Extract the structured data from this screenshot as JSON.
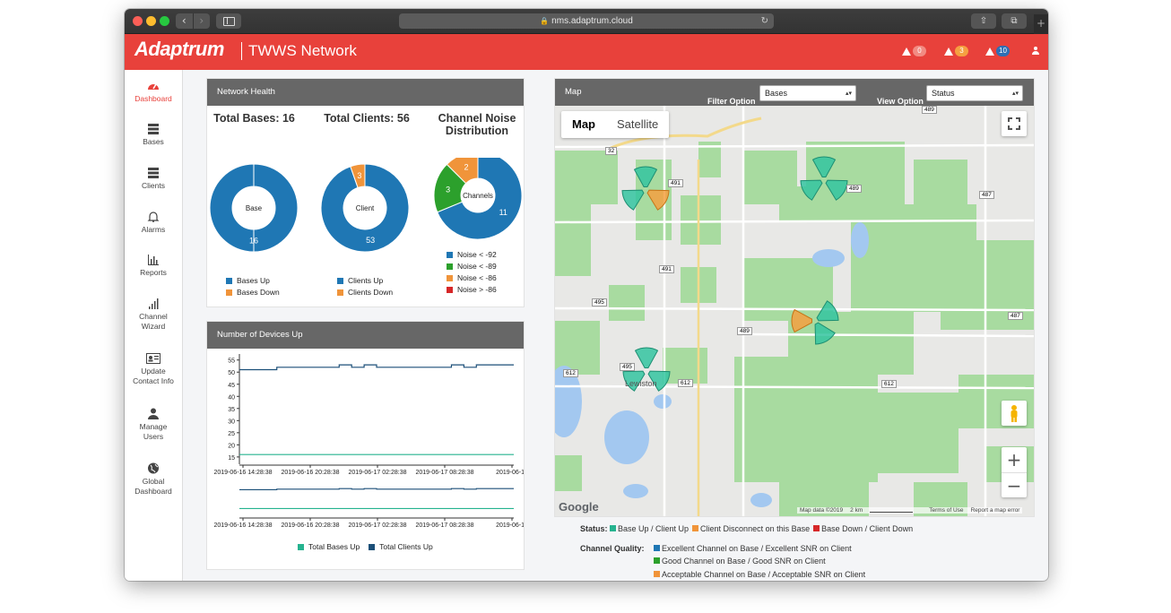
{
  "browser": {
    "url": "nms.adaptrum.cloud",
    "back_icon": "chevron-left",
    "forward_icon": "chevron-right",
    "share_icon": "share",
    "tabs_icon": "tabs",
    "new_tab": "+"
  },
  "app": {
    "logo": "Adaptrum",
    "title": "TWWS Network",
    "alerts": [
      {
        "count": "0",
        "color": "#f28b82"
      },
      {
        "count": "3",
        "color": "#f5a041"
      },
      {
        "count": "10",
        "color": "#2e6fb4"
      }
    ]
  },
  "nav": [
    {
      "label": "Dashboard",
      "icon": "dashboard-icon",
      "active": true
    },
    {
      "label": "Bases",
      "icon": "server-icon"
    },
    {
      "label": "Clients",
      "icon": "server-icon"
    },
    {
      "label": "Alarms",
      "icon": "bell-icon"
    },
    {
      "label": "Reports",
      "icon": "bar-chart-icon"
    },
    {
      "label_lines": [
        "Channel",
        "Wizard"
      ],
      "icon": "signal-icon"
    },
    {
      "label_lines": [
        "Update",
        "Contact Info"
      ],
      "icon": "contact-card-icon"
    },
    {
      "label_lines": [
        "Manage",
        "Users"
      ],
      "icon": "user-icon"
    },
    {
      "label_lines": [
        "Global",
        "Dashboard"
      ],
      "icon": "globe-icon"
    }
  ],
  "health": {
    "title": "Network Health",
    "total_bases": "Total Bases: 16",
    "total_clients": "Total Clients: 56",
    "noise_title_1": "Channel Noise",
    "noise_title_2": "Distribution",
    "donut_bases_center": "Base",
    "donut_clients_center": "Client",
    "donut_noise_center": "Channels",
    "legend_bases": [
      "Bases Up",
      "Bases Down"
    ],
    "legend_clients": [
      "Clients Up",
      "Clients Down"
    ],
    "legend_noise": [
      "Noise < -92",
      "Noise < -89",
      "Noise < -86",
      "Noise > -86"
    ]
  },
  "devices": {
    "title": "Number of Devices Up",
    "legend": [
      "Total Bases Up",
      "Total Clients Up"
    ]
  },
  "map": {
    "title": "Map",
    "filter_label": "Filter Option",
    "filter_value": "Bases",
    "view_label": "View Option",
    "view_value": "Status",
    "type_map": "Map",
    "type_satellite": "Satellite",
    "google": "Google",
    "attribution": "Map data ©2019",
    "scale": "2 km",
    "terms": "Terms of Use",
    "report": "Report a map error",
    "town": "Lewiston",
    "roads": [
      "489",
      "32",
      "491",
      "489",
      "487",
      "491",
      "495",
      "489",
      "487",
      "612",
      "495",
      "612",
      "612"
    ]
  },
  "status_legend": {
    "status_label": "Status:",
    "status_items": [
      "Base Up / Client Up",
      "Client Disconnect on this Base",
      "Base Down / Client Down"
    ],
    "quality_label": "Channel Quality:",
    "quality_items": [
      "Excellent Channel on Base / Excellent SNR on Client",
      "Good Channel on Base / Good SNR on Client",
      "Acceptable Channel on Base / Acceptable SNR on Client"
    ]
  },
  "colors": {
    "brand_red": "#e8413b",
    "up_blue": "#1f77b4",
    "down_orange": "#f0943a",
    "good_green": "#2ca02c",
    "bad_red": "#d62728",
    "teal": "#26b38f",
    "navy": "#1b4f78"
  },
  "chart_data": [
    {
      "type": "pie",
      "title": "Total Bases: 16",
      "center_label": "Base",
      "labels": [
        "Bases Up",
        "Bases Down"
      ],
      "values": [
        16,
        0
      ]
    },
    {
      "type": "pie",
      "title": "Total Clients: 56",
      "center_label": "Client",
      "labels": [
        "Clients Up",
        "Clients Down"
      ],
      "values": [
        53,
        3
      ]
    },
    {
      "type": "pie",
      "title": "Channel Noise Distribution",
      "center_label": "Channels",
      "labels": [
        "Noise < -92",
        "Noise < -89",
        "Noise < -86",
        "Noise > -86"
      ],
      "values": [
        11,
        3,
        2,
        0
      ]
    },
    {
      "type": "line",
      "title": "Number of Devices Up",
      "x_ticks": [
        "2019-06-16 14:28:38",
        "2019-06-16 20:28:38",
        "2019-06-17 02:28:38",
        "2019-06-17 08:28:38",
        "2019-06-17"
      ],
      "y_ticks": [
        15,
        20,
        25,
        30,
        35,
        40,
        45,
        50,
        55
      ],
      "ylim": [
        12,
        56
      ],
      "series": [
        {
          "name": "Total Clients Up",
          "color": "#1b4f78",
          "values": [
            51,
            51,
            51,
            52,
            52,
            52,
            52,
            52,
            53,
            52,
            53,
            52,
            52,
            52,
            52,
            52,
            52,
            53,
            52,
            53,
            53,
            53,
            53
          ]
        },
        {
          "name": "Total Bases Up",
          "color": "#26b38f",
          "values": [
            16,
            16,
            16,
            16,
            16,
            16,
            16,
            16,
            16,
            16,
            16,
            16,
            16,
            16,
            16,
            16,
            16,
            16,
            16,
            16,
            16,
            16,
            16
          ]
        }
      ]
    }
  ]
}
